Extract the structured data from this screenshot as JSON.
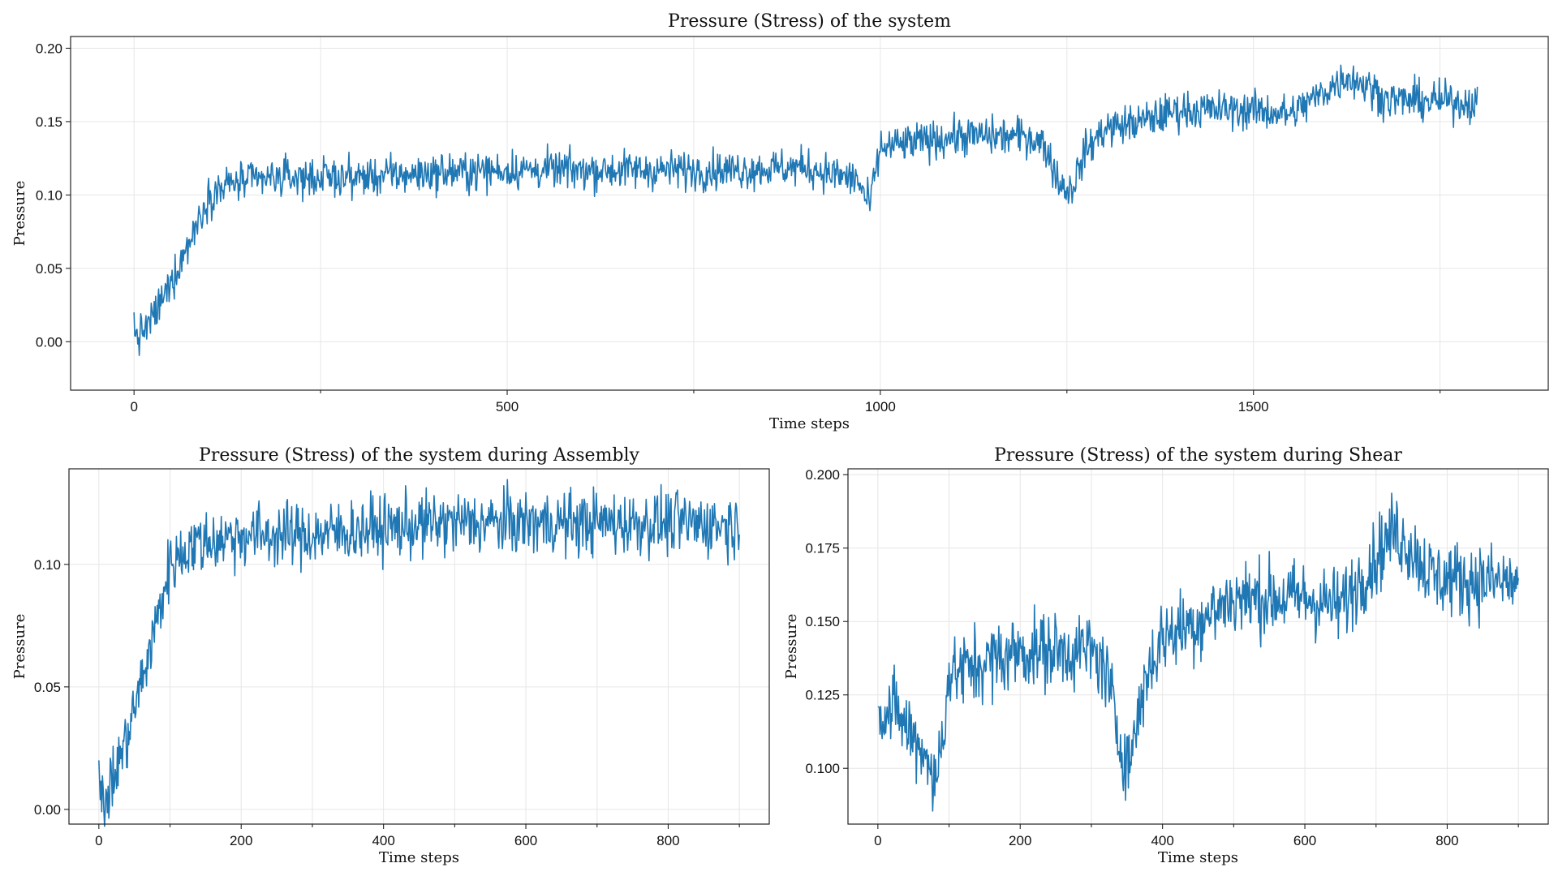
{
  "colors": {
    "series": "#1f77b4"
  },
  "chart_data": [
    {
      "type": "line",
      "title": "Pressure (Stress) of the system",
      "xlabel": "Time steps",
      "ylabel": "Pressure",
      "xlim": [
        -85,
        1895
      ],
      "ylim": [
        -0.033,
        0.208
      ],
      "xticks": [
        0,
        500,
        1000,
        1500
      ],
      "yticks": [
        0.0,
        0.05,
        0.1,
        0.15,
        0.2
      ],
      "ytick_labels": [
        "0.00",
        "0.05",
        "0.10",
        "0.15",
        "0.20"
      ],
      "grid": true,
      "n_points": 1800,
      "series": [
        {
          "x_range": [
            0,
            1800
          ],
          "anchors": [
            [
              0,
              0.02
            ],
            [
              1,
              0.004
            ],
            [
              5,
              0.003
            ],
            [
              20,
              0.012
            ],
            [
              40,
              0.03
            ],
            [
              60,
              0.052
            ],
            [
              80,
              0.075
            ],
            [
              100,
              0.1
            ],
            [
              130,
              0.108
            ],
            [
              200,
              0.112
            ],
            [
              300,
              0.112
            ],
            [
              400,
              0.115
            ],
            [
              500,
              0.117
            ],
            [
              600,
              0.117
            ],
            [
              700,
              0.117
            ],
            [
              800,
              0.117
            ],
            [
              900,
              0.119
            ],
            [
              970,
              0.11
            ],
            [
              985,
              0.092
            ],
            [
              1000,
              0.132
            ],
            [
              1050,
              0.136
            ],
            [
              1100,
              0.14
            ],
            [
              1200,
              0.14
            ],
            [
              1220,
              0.134
            ],
            [
              1240,
              0.108
            ],
            [
              1255,
              0.103
            ],
            [
              1275,
              0.13
            ],
            [
              1300,
              0.145
            ],
            [
              1350,
              0.15
            ],
            [
              1400,
              0.158
            ],
            [
              1500,
              0.158
            ],
            [
              1550,
              0.155
            ],
            [
              1600,
              0.172
            ],
            [
              1625,
              0.181
            ],
            [
              1650,
              0.175
            ],
            [
              1680,
              0.165
            ],
            [
              1800,
              0.163
            ]
          ],
          "noise": 0.0065
        }
      ]
    },
    {
      "type": "line",
      "title": "Pressure (Stress) of the system during Assembly",
      "xlabel": "Time steps",
      "ylabel": "Pressure",
      "xlim": [
        -42,
        942
      ],
      "ylim": [
        -0.006,
        0.139
      ],
      "xticks": [
        0,
        200,
        400,
        600,
        800
      ],
      "yticks": [
        0.0,
        0.05,
        0.1
      ],
      "ytick_labels": [
        "0.00",
        "0.05",
        "0.10"
      ],
      "grid": true,
      "n_points": 900,
      "series": [
        {
          "x_range": [
            0,
            900
          ],
          "anchors": [
            [
              0,
              0.02
            ],
            [
              2,
              0.004
            ],
            [
              8,
              0.003
            ],
            [
              20,
              0.012
            ],
            [
              40,
              0.03
            ],
            [
              60,
              0.052
            ],
            [
              80,
              0.075
            ],
            [
              100,
              0.1
            ],
            [
              130,
              0.108
            ],
            [
              200,
              0.112
            ],
            [
              300,
              0.112
            ],
            [
              400,
              0.115
            ],
            [
              500,
              0.117
            ],
            [
              600,
              0.117
            ],
            [
              700,
              0.117
            ],
            [
              800,
              0.117
            ],
            [
              900,
              0.116
            ]
          ],
          "noise": 0.0065
        }
      ]
    },
    {
      "type": "line",
      "title": "Pressure (Stress) of the system during Shear",
      "xlabel": "Time steps",
      "ylabel": "Pressure",
      "xlim": [
        -42,
        942
      ],
      "ylim": [
        0.081,
        0.202
      ],
      "xticks": [
        0,
        200,
        400,
        600,
        800
      ],
      "yticks": [
        0.1,
        0.125,
        0.15,
        0.175,
        0.2
      ],
      "ytick_labels": [
        "0.100",
        "0.125",
        "0.150",
        "0.175",
        "0.200"
      ],
      "grid": true,
      "n_points": 900,
      "series": [
        {
          "x_range": [
            0,
            900
          ],
          "anchors": [
            [
              0,
              0.121
            ],
            [
              30,
              0.118
            ],
            [
              50,
              0.11
            ],
            [
              70,
              0.105
            ],
            [
              80,
              0.092
            ],
            [
              90,
              0.11
            ],
            [
              100,
              0.132
            ],
            [
              150,
              0.136
            ],
            [
              200,
              0.14
            ],
            [
              300,
              0.14
            ],
            [
              320,
              0.134
            ],
            [
              340,
              0.108
            ],
            [
              355,
              0.103
            ],
            [
              375,
              0.13
            ],
            [
              400,
              0.145
            ],
            [
              450,
              0.15
            ],
            [
              500,
              0.158
            ],
            [
              600,
              0.158
            ],
            [
              650,
              0.155
            ],
            [
              700,
              0.172
            ],
            [
              725,
              0.181
            ],
            [
              750,
              0.175
            ],
            [
              780,
              0.165
            ],
            [
              900,
              0.163
            ]
          ],
          "noise": 0.0065
        }
      ]
    }
  ]
}
